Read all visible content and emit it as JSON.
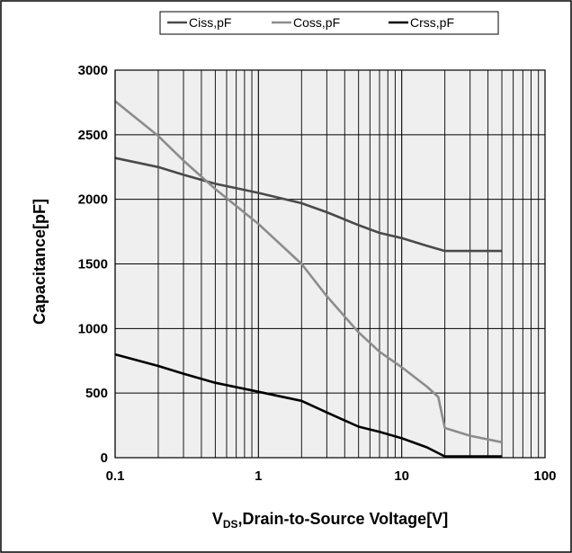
{
  "chart_data": {
    "type": "line",
    "x_scale": "log",
    "xlim": [
      0.1,
      100
    ],
    "ylim": [
      0,
      3000
    ],
    "x_ticks": [
      "0.1",
      "1",
      "10",
      "100"
    ],
    "y_ticks": [
      "0",
      "500",
      "1000",
      "1500",
      "2000",
      "2500",
      "3000"
    ],
    "xlabel": {
      "prefix": "V",
      "subscript": "DS",
      "rest": ",Drain-to-Source Voltage[V]"
    },
    "ylabel": "Capacitance[pF]",
    "grid": true,
    "legend_position": "top",
    "series": [
      {
        "name": "Ciss,pF",
        "color": "#4a4a4a",
        "x": [
          0.1,
          0.2,
          0.3,
          0.5,
          1,
          2,
          3,
          5,
          7,
          10,
          15,
          20,
          30,
          50
        ],
        "y": [
          2320,
          2250,
          2190,
          2120,
          2050,
          1970,
          1900,
          1800,
          1740,
          1700,
          1640,
          1600,
          1600,
          1600
        ]
      },
      {
        "name": "Coss,pF",
        "color": "#8c8c8c",
        "x": [
          0.1,
          0.2,
          0.3,
          0.5,
          1,
          2,
          3,
          5,
          7,
          10,
          15,
          18,
          20,
          30,
          50
        ],
        "y": [
          2760,
          2490,
          2300,
          2080,
          1810,
          1500,
          1250,
          970,
          820,
          700,
          550,
          470,
          230,
          170,
          120
        ]
      },
      {
        "name": "Crss,pF",
        "color": "#000000",
        "x": [
          0.1,
          0.2,
          0.3,
          0.5,
          1,
          2,
          3,
          5,
          7,
          10,
          15,
          20,
          30,
          50
        ],
        "y": [
          800,
          710,
          650,
          580,
          510,
          440,
          350,
          240,
          200,
          150,
          80,
          10,
          10,
          10
        ]
      }
    ]
  }
}
